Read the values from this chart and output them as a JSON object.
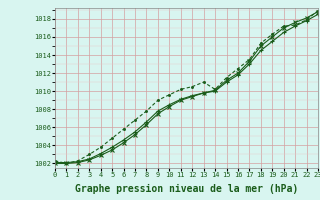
{
  "title": "Graphe pression niveau de la mer (hPa)",
  "bg_color": "#d8f5f0",
  "grid_major_color": "#d4a0a0",
  "grid_minor_color": "#e8c8c8",
  "line_color": "#1a5c1a",
  "xlim": [
    0,
    23
  ],
  "ylim": [
    1001.5,
    1019.2
  ],
  "xticks": [
    0,
    1,
    2,
    3,
    4,
    5,
    6,
    7,
    8,
    9,
    10,
    11,
    12,
    13,
    14,
    15,
    16,
    17,
    18,
    19,
    20,
    21,
    22,
    23
  ],
  "yticks": [
    1002,
    1004,
    1006,
    1008,
    1010,
    1012,
    1014,
    1016,
    1018
  ],
  "series1": [
    1002.1,
    1002.1,
    1002.2,
    1002.5,
    1003.1,
    1003.8,
    1004.6,
    1005.5,
    1006.6,
    1007.8,
    1008.5,
    1009.1,
    1009.5,
    1009.8,
    1010.0,
    1011.0,
    1011.8,
    1013.0,
    1014.5,
    1015.5,
    1016.5,
    1017.2,
    1017.8,
    1018.5
  ],
  "series2": [
    1002.0,
    1002.0,
    1002.1,
    1002.4,
    1002.9,
    1003.5,
    1004.3,
    1005.2,
    1006.3,
    1007.5,
    1008.3,
    1009.0,
    1009.4,
    1009.8,
    1010.1,
    1011.2,
    1012.0,
    1013.3,
    1015.0,
    1016.0,
    1017.0,
    1017.6,
    1018.1,
    1018.8
  ],
  "series3": [
    1002.3,
    1002.0,
    1002.3,
    1003.0,
    1003.8,
    1004.8,
    1005.8,
    1006.8,
    1007.8,
    1009.0,
    1009.6,
    1010.2,
    1010.5,
    1011.0,
    1010.2,
    1011.5,
    1012.5,
    1013.5,
    1015.3,
    1016.3,
    1017.2,
    1017.3,
    1017.9,
    1018.9
  ],
  "title_color": "#1a5c1a",
  "title_fontsize": 7
}
